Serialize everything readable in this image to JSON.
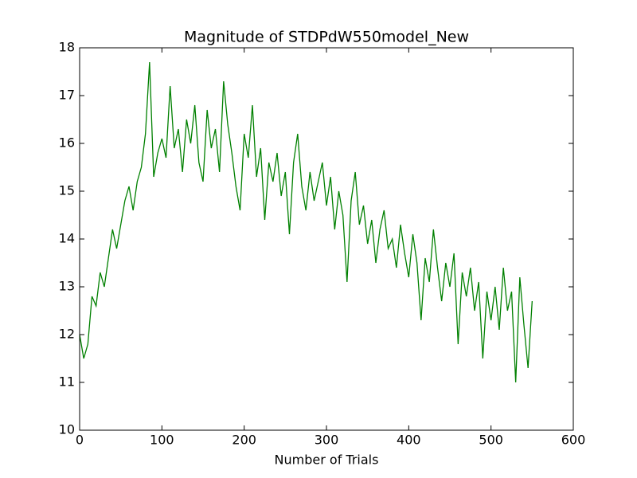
{
  "chart_data": {
    "type": "line",
    "title": "Magnitude of STDPdW550model_New",
    "xlabel": "Number of Trials",
    "x": [
      0,
      5,
      10,
      15,
      20,
      25,
      30,
      35,
      40,
      45,
      50,
      55,
      60,
      65,
      70,
      75,
      80,
      85,
      90,
      95,
      100,
      105,
      110,
      115,
      120,
      125,
      130,
      135,
      140,
      145,
      150,
      155,
      160,
      165,
      170,
      175,
      180,
      185,
      190,
      195,
      200,
      205,
      210,
      215,
      220,
      225,
      230,
      235,
      240,
      245,
      250,
      255,
      260,
      265,
      270,
      275,
      280,
      285,
      290,
      295,
      300,
      305,
      310,
      315,
      320,
      325,
      330,
      335,
      340,
      345,
      350,
      355,
      360,
      365,
      370,
      375,
      380,
      385,
      390,
      395,
      400,
      405,
      410,
      415,
      420,
      425,
      430,
      435,
      440,
      445,
      450,
      455,
      460,
      465,
      470,
      475,
      480,
      485,
      490,
      495,
      500,
      505,
      510,
      515,
      520,
      525,
      530,
      535,
      540,
      545,
      550
    ],
    "series": [
      {
        "color": "#008000",
        "values": [
          12.0,
          11.5,
          11.8,
          12.8,
          12.6,
          13.3,
          13.0,
          13.6,
          14.2,
          13.8,
          14.3,
          14.8,
          15.1,
          14.6,
          15.2,
          15.5,
          16.2,
          17.7,
          15.3,
          15.8,
          16.1,
          15.7,
          17.2,
          15.9,
          16.3,
          15.4,
          16.5,
          16.0,
          16.8,
          15.6,
          15.2,
          16.7,
          15.9,
          16.3,
          15.4,
          17.3,
          16.4,
          15.8,
          15.1,
          14.6,
          16.2,
          15.7,
          16.8,
          15.3,
          15.9,
          14.4,
          15.6,
          15.2,
          15.8,
          14.9,
          15.4,
          14.1,
          15.6,
          16.2,
          15.1,
          14.6,
          15.4,
          14.8,
          15.2,
          15.6,
          14.7,
          15.3,
          14.2,
          15.0,
          14.5,
          13.1,
          14.8,
          15.4,
          14.3,
          14.7,
          13.9,
          14.4,
          13.5,
          14.2,
          14.6,
          13.8,
          14.0,
          13.4,
          14.3,
          13.7,
          13.2,
          14.1,
          13.5,
          12.3,
          13.6,
          13.1,
          14.2,
          13.4,
          12.7,
          13.5,
          13.0,
          13.7,
          11.8,
          13.3,
          12.8,
          13.4,
          12.5,
          13.1,
          11.5,
          12.9,
          12.3,
          13.0,
          12.1,
          13.4,
          12.5,
          12.9,
          11.0,
          13.2,
          12.2,
          11.3,
          12.7
        ]
      }
    ],
    "xlim": [
      0,
      600
    ],
    "xticks": [
      0,
      100,
      200,
      300,
      400,
      500,
      600
    ],
    "ylim": [
      10,
      18
    ],
    "yticks": [
      10,
      11,
      12,
      13,
      14,
      15,
      16,
      17,
      18
    ]
  }
}
